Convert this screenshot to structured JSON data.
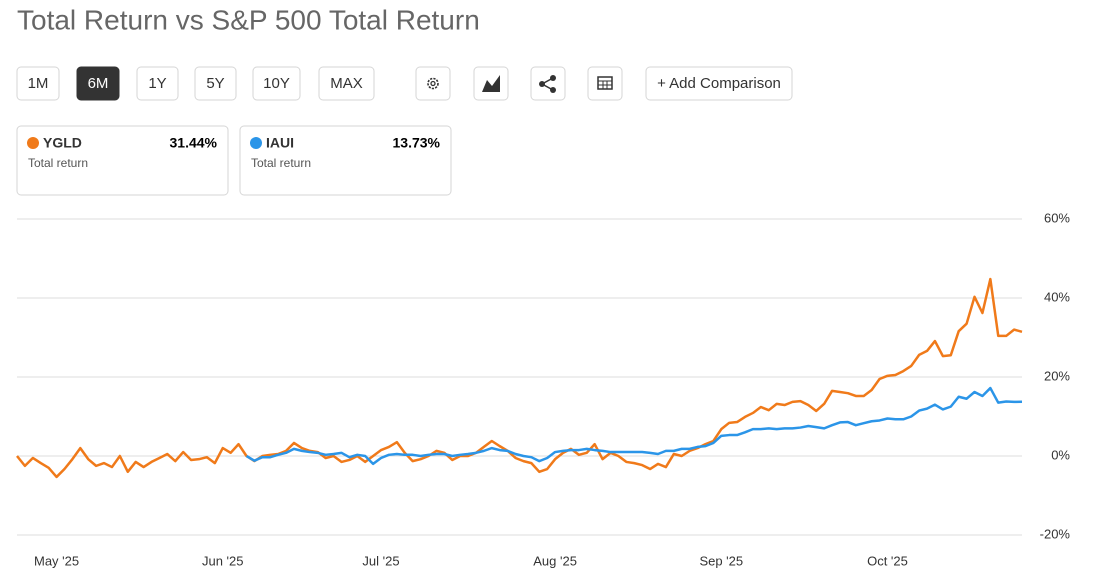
{
  "chart_data": {
    "type": "line",
    "title": "Total Return vs S&P 500 Total Return",
    "toolbar": {
      "ranges": [
        "1M",
        "6M",
        "1Y",
        "5Y",
        "10Y",
        "MAX"
      ],
      "selected_range": 1,
      "add_comparison": "+ Add Comparison"
    },
    "categories": [
      null,
      null,
      null,
      null,
      null,
      "May '25",
      null,
      null,
      null,
      null,
      null,
      null,
      null,
      null,
      null,
      null,
      null,
      null,
      null,
      null,
      null,
      null,
      null,
      null,
      null,
      null,
      "Jun '25",
      null,
      null,
      null,
      null,
      null,
      null,
      null,
      null,
      null,
      null,
      null,
      null,
      null,
      null,
      null,
      null,
      null,
      null,
      null,
      "Jul '25",
      null,
      null,
      null,
      null,
      null,
      null,
      null,
      null,
      null,
      null,
      null,
      null,
      null,
      null,
      null,
      null,
      null,
      null,
      null,
      null,
      null,
      "Aug '25",
      null,
      null,
      null,
      null,
      null,
      null,
      null,
      null,
      null,
      null,
      null,
      null,
      null,
      null,
      null,
      null,
      null,
      null,
      null,
      null,
      "Sep '25",
      null,
      null,
      null,
      null,
      null,
      null,
      null,
      null,
      null,
      null,
      null,
      null,
      null,
      null,
      null,
      null,
      null,
      null,
      null,
      null,
      "Oct '25",
      null,
      null,
      null,
      null,
      null,
      null,
      null,
      null,
      null,
      null,
      null,
      null,
      null,
      null,
      null,
      null,
      null
    ],
    "series": [
      {
        "name": "YGLD",
        "color": "#f07a1a",
        "last_label": "31.44%",
        "caption": "Total return",
        "values": [
          0,
          -2.5,
          -0.5,
          -1.8,
          -3,
          -5.3,
          -3.3,
          -0.8,
          2,
          -0.8,
          -2.5,
          -1.8,
          -2.8,
          0,
          -4,
          -1.5,
          -2.8,
          -1.5,
          -0.5,
          0.5,
          -1.3,
          1,
          -1,
          -0.8,
          -0.3,
          -1.8,
          2,
          0.8,
          3,
          0,
          -1.3,
          0,
          0.3,
          0.5,
          1.3,
          3.3,
          2,
          1.3,
          1,
          -0.5,
          0,
          -1.5,
          -1,
          0,
          -1.5,
          0,
          1.5,
          2.3,
          3.5,
          0.8,
          -1.3,
          -0.8,
          0,
          1.3,
          0.8,
          -1,
          0,
          0,
          0.8,
          2.3,
          3.8,
          2.5,
          1.3,
          -0.5,
          -1.3,
          -1.8,
          -4,
          -3.3,
          -0.8,
          0.8,
          1.8,
          0.3,
          0.8,
          3,
          -0.8,
          0.8,
          0,
          -1.5,
          -1.8,
          -2.3,
          -3.3,
          -2,
          -2.8,
          0.5,
          0,
          1.3,
          2,
          3,
          3.8,
          6.8,
          8.4,
          8.6,
          9.9,
          10.9,
          12.4,
          11.6,
          13.2,
          12.9,
          13.7,
          13.9,
          12.9,
          11.4,
          13.2,
          16.5,
          16.2,
          15.9,
          15.2,
          15.2,
          16.7,
          19.5,
          20.3,
          20.5,
          21.5,
          22.8,
          25.6,
          26.6,
          29.1,
          25.3,
          25.5,
          31.6,
          33.5,
          40.3,
          36.2,
          44.8,
          30.4,
          30.4,
          32,
          31.44
        ]
      },
      {
        "name": "IAUI",
        "color": "#2b95e8",
        "last_label": "13.73%",
        "caption": "Total return",
        "values": [
          null,
          null,
          null,
          null,
          null,
          null,
          null,
          null,
          null,
          null,
          null,
          null,
          null,
          null,
          null,
          null,
          null,
          null,
          null,
          null,
          null,
          null,
          null,
          null,
          null,
          null,
          null,
          null,
          null,
          0,
          -1.2,
          -0.3,
          -0.3,
          0.3,
          0.8,
          1.8,
          1.3,
          1,
          0.8,
          0.3,
          0.5,
          0.8,
          -0.3,
          0.3,
          0,
          -2,
          -0.5,
          0.3,
          0.5,
          0.3,
          0.3,
          0,
          0.3,
          0.5,
          0.5,
          0,
          0.3,
          0.5,
          0.8,
          1.3,
          2,
          1.5,
          1.3,
          0.5,
          0,
          -0.3,
          -1.3,
          -0.5,
          1,
          1.3,
          1.5,
          1.5,
          1.8,
          1.5,
          1.3,
          1,
          1,
          1,
          1,
          1,
          0.8,
          0.5,
          1.3,
          1.3,
          1.8,
          1.8,
          2.3,
          2.5,
          3.3,
          5.1,
          5.3,
          5.3,
          6,
          6.8,
          6.8,
          7,
          6.8,
          7,
          7,
          7.2,
          7.6,
          7.3,
          7,
          7.8,
          8.5,
          8.6,
          7.8,
          8.3,
          8.8,
          9,
          9.5,
          9.3,
          9.3,
          10,
          11.5,
          12,
          13,
          11.8,
          12.5,
          15,
          14.5,
          16.2,
          15.2,
          17.2,
          13.5,
          13.8,
          13.7,
          13.73
        ]
      }
    ],
    "ylim": [
      -20,
      60
    ],
    "yticks": [
      {
        "value": -20,
        "label": "-20%"
      },
      {
        "value": 0,
        "label": "0%"
      },
      {
        "value": 20,
        "label": "20%"
      },
      {
        "value": 40,
        "label": "40%"
      },
      {
        "value": 60,
        "label": "60%"
      }
    ],
    "grid": true
  }
}
